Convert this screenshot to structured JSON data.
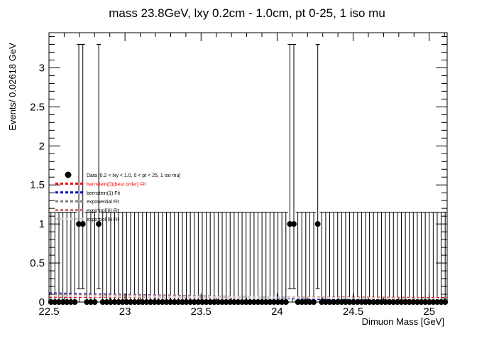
{
  "chart_data": {
    "type": "scatter",
    "title": "mass 23.8GeV, lxy 0.2cm - 1.0cm, pt 0-25, 1 iso mu",
    "xlabel": "Dimuon Mass [GeV]",
    "ylabel": "Events/ 0.02618 GeV",
    "xlim": [
      22.5,
      25.118
    ],
    "ylim": [
      0,
      3.45
    ],
    "xticks": [
      22.5,
      23,
      23.5,
      24,
      24.5,
      25
    ],
    "xtick_labels": [
      "22.5",
      "23",
      "23.5",
      "24",
      "24.5",
      "25"
    ],
    "yticks": [
      0,
      0.5,
      1,
      1.5,
      2,
      2.5,
      3
    ],
    "ytick_labels": [
      "0",
      "0.5",
      "1",
      "1.5",
      "2",
      "2.5",
      "3"
    ],
    "bin_width": 0.02618,
    "n_bins": 100,
    "nonzero_bins": [
      {
        "x": 22.7,
        "y": 1
      },
      {
        "x": 22.73,
        "y": 1
      },
      {
        "x": 22.83,
        "y": 1
      },
      {
        "x": 24.08,
        "y": 1
      },
      {
        "x": 24.11,
        "y": 1
      },
      {
        "x": 24.28,
        "y": 1
      }
    ],
    "error_bars": {
      "zero_bin_upper": 1.15,
      "one_bin_upper": 3.3,
      "one_bin_lower": 0.17
    },
    "fits": [
      {
        "name": "bernstein(0)(best order) Fit",
        "color": "#ff0000",
        "y_start": 0.07,
        "y_end": 0.05
      },
      {
        "name": "bernstein(1) Fit",
        "color": "#0000cc",
        "y_start": 0.11,
        "y_end": 0.01
      },
      {
        "name": "exponential Fit",
        "color": "#808080",
        "y_start": 0.1,
        "y_end": 0.03
      },
      {
        "name": "expo*pol(0) Fit",
        "color": "#cd6e6e",
        "y_start": 0.09,
        "y_end": 0.035
      },
      {
        "name": "expo*pol(0) Fit",
        "color": "#d3d3d3",
        "y_start": 0.08,
        "y_end": 0.04
      }
    ],
    "legend": {
      "placement": "center-left",
      "entries": [
        {
          "label": "Data [0.2 < lxy < 1.0, 0 < pt < 25, 1 iso mu]",
          "kind": "marker",
          "color": "#000000"
        },
        {
          "label": "bernstein(0)(best order) Fit",
          "kind": "line",
          "color": "#ff0000",
          "text_color": "#ff0000"
        },
        {
          "label": "bernstein(1) Fit",
          "kind": "line",
          "color": "#0000cc",
          "text_color": "#000000"
        },
        {
          "label": "exponential Fit",
          "kind": "line",
          "color": "#808080",
          "text_color": "#000000"
        },
        {
          "label": "expo*pol(0) Fit",
          "kind": "line",
          "color": "#cd6e6e",
          "text_color": "#000000"
        },
        {
          "label": "expo*pol(0) Fit",
          "kind": "line",
          "color": "#d3d3d3",
          "text_color": "#000000"
        }
      ]
    }
  }
}
